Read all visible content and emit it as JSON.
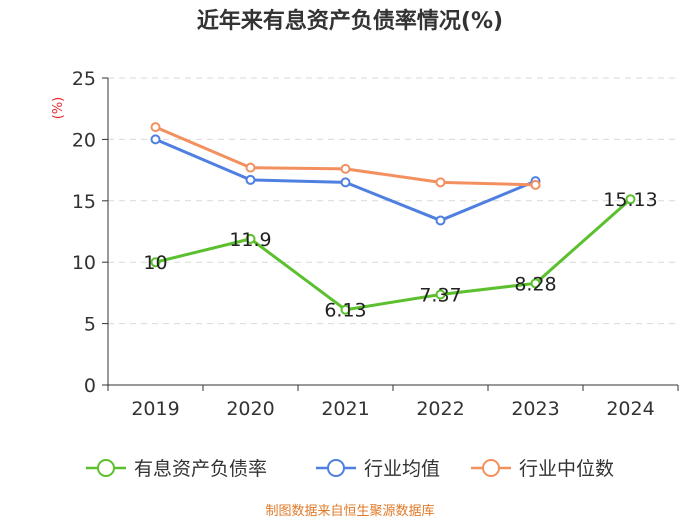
{
  "chart_data": {
    "type": "line",
    "title": "近年来有息资产负债率情况(%)",
    "ylabel": "(%)",
    "xlabel": "",
    "categories": [
      "2019",
      "2020",
      "2021",
      "2022",
      "2023",
      "2024"
    ],
    "ylim": [
      0,
      25
    ],
    "yticks": [
      "0",
      "5",
      "10",
      "15",
      "20",
      "25"
    ],
    "grid": true,
    "legend_position": "bottom",
    "series": [
      {
        "name": "有息资产负债率",
        "color": "#5cc02e",
        "values": [
          10,
          11.9,
          6.13,
          7.37,
          8.28,
          15.13
        ],
        "labels": [
          "10",
          "11.9",
          "6.13",
          "7.37",
          "8.28",
          "15.13"
        ]
      },
      {
        "name": "行业均值",
        "color": "#4f7fe0",
        "values": [
          20.0,
          16.7,
          16.5,
          13.4,
          16.6,
          null
        ]
      },
      {
        "name": "行业中位数",
        "color": "#f39060",
        "values": [
          21.0,
          17.7,
          17.6,
          16.5,
          16.3,
          null
        ]
      }
    ]
  },
  "source": "制图数据来自恒生聚源数据库"
}
